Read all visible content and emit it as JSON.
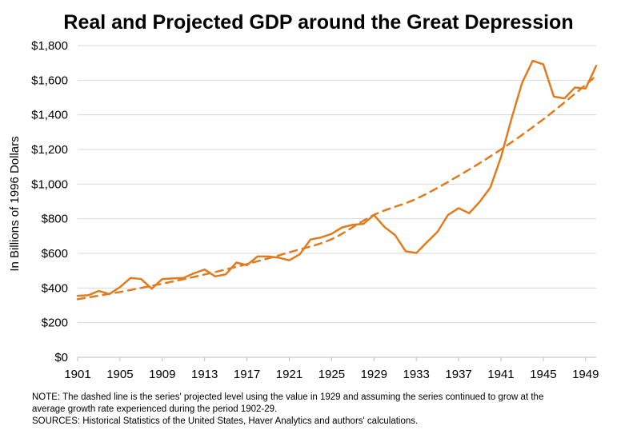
{
  "chart_data": {
    "type": "line",
    "title": "Real and Projected GDP around the Great Depression",
    "ylabel": "In Billions of 1996 Dollars",
    "xlabel": "",
    "ylim": [
      0,
      1800
    ],
    "xlim": [
      1901,
      1950
    ],
    "y_ticks": [
      0,
      200,
      400,
      600,
      800,
      1000,
      1200,
      1400,
      1600,
      1800
    ],
    "y_tick_labels": [
      "$0",
      "$200",
      "$400",
      "$600",
      "$800",
      "$1,000",
      "$1,200",
      "$1,400",
      "$1,600",
      "$1,800"
    ],
    "x_ticks": [
      1901,
      1905,
      1909,
      1913,
      1917,
      1921,
      1925,
      1929,
      1933,
      1937,
      1941,
      1945,
      1949
    ],
    "x_tick_labels": [
      "1901",
      "1905",
      "1909",
      "1913",
      "1917",
      "1921",
      "1925",
      "1929",
      "1933",
      "1937",
      "1941",
      "1945",
      "1949"
    ],
    "grid": true,
    "color": "#e07b1f",
    "series": [
      {
        "name": "Real GDP",
        "style": "solid",
        "x": [
          1901,
          1902,
          1903,
          1904,
          1905,
          1906,
          1907,
          1908,
          1909,
          1910,
          1911,
          1912,
          1913,
          1914,
          1915,
          1916,
          1917,
          1918,
          1919,
          1920,
          1921,
          1922,
          1923,
          1924,
          1925,
          1926,
          1927,
          1928,
          1929,
          1930,
          1931,
          1932,
          1933,
          1934,
          1935,
          1936,
          1937,
          1938,
          1939,
          1940,
          1941,
          1942,
          1943,
          1944,
          1945,
          1946,
          1947,
          1948,
          1949,
          1950
        ],
        "values": [
          355,
          358,
          383,
          365,
          405,
          458,
          452,
          396,
          452,
          455,
          458,
          485,
          507,
          467,
          479,
          547,
          532,
          582,
          582,
          575,
          560,
          595,
          680,
          692,
          713,
          750,
          765,
          770,
          822,
          752,
          705,
          612,
          602,
          664,
          724,
          822,
          861,
          832,
          898,
          980,
          1155,
          1378,
          1585,
          1712,
          1692,
          1505,
          1495,
          1558,
          1552,
          1683
        ]
      },
      {
        "name": "Projected GDP",
        "style": "dashed",
        "x": [
          1901,
          1905,
          1909,
          1913,
          1917,
          1921,
          1925,
          1929,
          1933,
          1937,
          1941,
          1945,
          1949,
          1950
        ],
        "values": [
          335,
          377,
          425,
          478,
          538,
          606,
          682,
          822,
          915,
          1048,
          1200,
          1374,
          1573,
          1628
        ]
      }
    ]
  },
  "notes": {
    "note_line1": "NOTE: The dashed line is the series' projected level using the value in 1929 and assuming the series continued to grow at the",
    "note_line2": "average growth rate experienced during the period 1902-29.",
    "sources": "SOURCES: Historical Statistics of the United States, Haver Analytics and authors' calculations."
  }
}
